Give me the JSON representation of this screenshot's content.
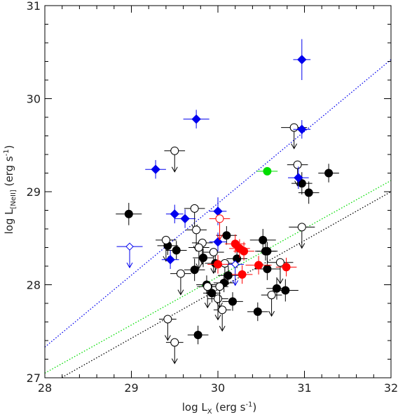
{
  "chart_data": {
    "type": "scatter",
    "xlabel": "log L",
    "xlabel_sub": "X",
    "xlabel_unit": " (erg s",
    "xlabel_sup": "-1",
    "xlabel_close": ")",
    "ylabel": "log L",
    "ylabel_sub": "[NeII]",
    "ylabel_unit": " (erg s",
    "ylabel_sup": "-1",
    "ylabel_close": ")",
    "xlim": [
      28,
      32
    ],
    "ylim": [
      27,
      31
    ],
    "xticks": [
      "28",
      "29",
      "30",
      "31",
      "32"
    ],
    "yticks": [
      "27",
      "28",
      "29",
      "30",
      "31"
    ],
    "grid": false,
    "colors": {
      "black": "#000000",
      "blue": "#0000ee",
      "red": "#ff0000",
      "green": "#00dd00",
      "axis": "#000000"
    },
    "lines": [
      {
        "color": "blue",
        "style": "dotted",
        "x": [
          28,
          32
        ],
        "y": [
          27.33,
          30.42
        ]
      },
      {
        "color": "green",
        "style": "dotted",
        "x": [
          28,
          32
        ],
        "y": [
          27.05,
          29.12
        ]
      },
      {
        "color": "black",
        "style": "dotted",
        "x": [
          28,
          32
        ],
        "y": [
          26.9,
          29.0
        ]
      }
    ],
    "series": [
      {
        "marker": "filled-circle",
        "color": "black",
        "points": [
          [
            28.97,
            28.76,
            0.15,
            0.12
          ],
          [
            29.42,
            28.42,
            0.12,
            0.1
          ],
          [
            29.52,
            28.37,
            0.12,
            0.1
          ],
          [
            29.73,
            28.16,
            0.12,
            0.12
          ],
          [
            29.77,
            27.46,
            0.12,
            0.1
          ],
          [
            29.83,
            28.29,
            0.12,
            0.1
          ],
          [
            29.87,
            28.0,
            0.12,
            0.1
          ],
          [
            29.93,
            27.91,
            0.1,
            0.1
          ],
          [
            29.97,
            28.23,
            0.12,
            0.1
          ],
          [
            30.07,
            28.02,
            0.12,
            0.1
          ],
          [
            30.1,
            28.53,
            0.12,
            0.1
          ],
          [
            30.12,
            28.1,
            0.12,
            0.1
          ],
          [
            30.17,
            27.82,
            0.12,
            0.1
          ],
          [
            30.22,
            28.28,
            0.12,
            0.1
          ],
          [
            30.46,
            27.71,
            0.12,
            0.1
          ],
          [
            30.52,
            28.48,
            0.15,
            0.12
          ],
          [
            30.55,
            28.36,
            0.12,
            0.1
          ],
          [
            30.57,
            28.17,
            0.15,
            0.12
          ],
          [
            30.68,
            27.96,
            0.12,
            0.12
          ],
          [
            30.78,
            27.94,
            0.15,
            0.12
          ],
          [
            30.97,
            29.09,
            0.12,
            0.12
          ],
          [
            31.05,
            28.99,
            0.12,
            0.12
          ],
          [
            31.28,
            29.2,
            0.12,
            0.1
          ],
          [
            30.57,
            28.36,
            0.12,
            0.1
          ]
        ]
      },
      {
        "marker": "open-circle",
        "color": "black",
        "points": [
          [
            29.42,
            27.63,
            0.1,
            0,
            true
          ],
          [
            29.5,
            27.38,
            0.1,
            0,
            true
          ],
          [
            29.5,
            29.44,
            0.12,
            0,
            true
          ],
          [
            29.4,
            28.48,
            0.12,
            0,
            true
          ],
          [
            29.57,
            28.12,
            0.12,
            0,
            true
          ],
          [
            29.73,
            28.82,
            0.12,
            0,
            true
          ],
          [
            29.75,
            28.59,
            0.12,
            0,
            true
          ],
          [
            29.82,
            28.45,
            0.12,
            0,
            true
          ],
          [
            29.78,
            28.4,
            0.12,
            0,
            true
          ],
          [
            29.88,
            27.98,
            0.12,
            0,
            true
          ],
          [
            29.95,
            28.35,
            0.12,
            0,
            true
          ],
          [
            30.0,
            27.85,
            0.12,
            0,
            true
          ],
          [
            30.05,
            27.73,
            0.1,
            0,
            true
          ],
          [
            30.08,
            28.23,
            0.12,
            0,
            true
          ],
          [
            30.62,
            27.89,
            0.12,
            0,
            true
          ],
          [
            30.72,
            28.24,
            0.15,
            0,
            true
          ],
          [
            30.88,
            29.69,
            0.15,
            0,
            true
          ],
          [
            30.92,
            29.29,
            0.12,
            0,
            true
          ],
          [
            30.97,
            28.62,
            0.15,
            0,
            true
          ],
          [
            30.02,
            27.98,
            0.1,
            0,
            true
          ]
        ]
      },
      {
        "marker": "filled-diamond",
        "color": "blue",
        "points": [
          [
            29.28,
            29.24,
            0.12,
            0.1
          ],
          [
            29.45,
            28.27,
            0.1,
            0.1
          ],
          [
            29.5,
            28.76,
            0.1,
            0.1
          ],
          [
            29.62,
            28.71,
            0.12,
            0.1
          ],
          [
            29.75,
            29.78,
            0.15,
            0.1
          ],
          [
            30.0,
            28.79,
            0.1,
            0.15
          ],
          [
            30.0,
            28.46,
            0.1,
            0.1
          ],
          [
            30.93,
            29.15,
            0.12,
            0.12
          ],
          [
            30.97,
            29.67,
            0.1,
            0.1
          ],
          [
            30.97,
            30.42,
            0.1,
            0.22
          ]
        ]
      },
      {
        "marker": "open-diamond",
        "color": "blue",
        "points": [
          [
            28.98,
            28.41,
            0.15,
            0,
            true
          ],
          [
            30.2,
            28.22,
            0.1,
            0,
            true
          ]
        ]
      },
      {
        "marker": "filled-circle",
        "color": "red",
        "points": [
          [
            30.0,
            28.22,
            0.12,
            0.1
          ],
          [
            30.2,
            28.44,
            0.12,
            0.1
          ],
          [
            30.25,
            28.39,
            0.12,
            0.1
          ],
          [
            30.28,
            28.11,
            0.12,
            0.1
          ],
          [
            30.3,
            28.36,
            0.12,
            0.1
          ],
          [
            30.47,
            28.21,
            0.15,
            0.1
          ],
          [
            30.79,
            28.19,
            0.12,
            0.1
          ]
        ]
      },
      {
        "marker": "open-circle",
        "color": "red",
        "points": [
          [
            30.02,
            28.71,
            0.12,
            0,
            true
          ]
        ]
      },
      {
        "marker": "filled-circle",
        "color": "green",
        "points": [
          [
            30.57,
            29.22,
            0.12,
            0
          ]
        ]
      }
    ]
  }
}
